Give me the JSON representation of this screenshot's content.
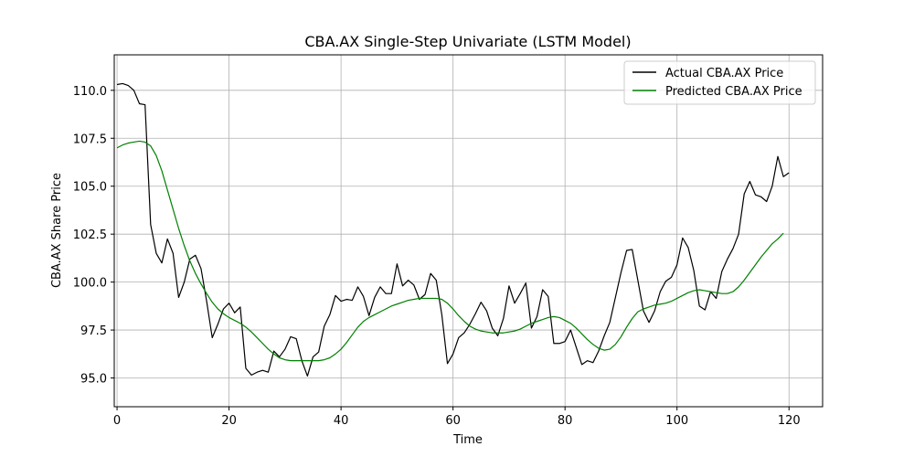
{
  "chart_data": {
    "type": "line",
    "title": "CBA.AX Single-Step Univariate (LSTM Model)",
    "xlabel": "Time",
    "ylabel": "CBA.AX Share Price",
    "xlim": [
      -0.5,
      126
    ],
    "ylim": [
      93.5,
      111.85
    ],
    "xticks": [
      0,
      20,
      40,
      60,
      80,
      100,
      120
    ],
    "yticks": [
      95.0,
      97.5,
      100.0,
      102.5,
      105.0,
      107.5,
      110.0
    ],
    "xtick_labels": [
      "0",
      "20",
      "40",
      "60",
      "80",
      "100",
      "120"
    ],
    "ytick_labels": [
      "95.0",
      "97.5",
      "100.0",
      "102.5",
      "105.0",
      "107.5",
      "110.0"
    ],
    "grid": true,
    "legend_position": "upper right",
    "series": [
      {
        "name": "Actual CBA.AX Price",
        "color": "#000000",
        "values": [
          110.3,
          110.35,
          110.25,
          110.0,
          109.3,
          109.25,
          103.0,
          101.5,
          101.0,
          102.25,
          101.5,
          99.2,
          100.0,
          101.2,
          101.4,
          100.7,
          99.0,
          97.1,
          97.8,
          98.6,
          98.9,
          98.4,
          98.7,
          95.5,
          95.15,
          95.3,
          95.4,
          95.3,
          96.4,
          96.1,
          96.5,
          97.15,
          97.05,
          95.9,
          95.1,
          96.1,
          96.35,
          97.7,
          98.3,
          99.3,
          99.0,
          99.1,
          99.05,
          99.75,
          99.25,
          98.25,
          99.2,
          99.75,
          99.4,
          99.4,
          100.95,
          99.8,
          100.1,
          99.85,
          99.1,
          99.35,
          100.45,
          100.1,
          98.3,
          95.75,
          96.25,
          97.1,
          97.35,
          97.8,
          98.35,
          98.95,
          98.5,
          97.6,
          97.2,
          98.1,
          99.8,
          98.9,
          99.4,
          99.95,
          97.6,
          98.2,
          99.6,
          99.25,
          96.8,
          96.8,
          96.9,
          97.5,
          96.6,
          95.7,
          95.9,
          95.8,
          96.4,
          97.2,
          97.9,
          99.2,
          100.5,
          101.65,
          101.7,
          100.1,
          98.5,
          97.9,
          98.5,
          99.5,
          100.05,
          100.25,
          100.9,
          102.3,
          101.8,
          100.6,
          98.75,
          98.55,
          99.5,
          99.15,
          100.55,
          101.2,
          101.75,
          102.5,
          104.6,
          105.25,
          104.55,
          104.45,
          104.2,
          105.0,
          106.55,
          105.5,
          105.7
        ]
      },
      {
        "name": "Predicted CBA.AX Price",
        "color": "#008000",
        "values": [
          107.0,
          107.15,
          107.25,
          107.3,
          107.35,
          107.3,
          107.1,
          106.6,
          105.8,
          104.8,
          103.8,
          102.8,
          101.9,
          101.1,
          100.45,
          99.9,
          99.4,
          98.95,
          98.6,
          98.35,
          98.15,
          98.0,
          97.85,
          97.65,
          97.4,
          97.1,
          96.8,
          96.5,
          96.25,
          96.05,
          95.95,
          95.9,
          95.9,
          95.9,
          95.9,
          95.9,
          95.9,
          95.95,
          96.05,
          96.25,
          96.5,
          96.85,
          97.25,
          97.65,
          97.95,
          98.15,
          98.3,
          98.45,
          98.6,
          98.75,
          98.85,
          98.95,
          99.05,
          99.1,
          99.15,
          99.15,
          99.15,
          99.15,
          99.1,
          98.9,
          98.6,
          98.25,
          97.95,
          97.7,
          97.55,
          97.45,
          97.4,
          97.35,
          97.35,
          97.35,
          97.4,
          97.45,
          97.55,
          97.7,
          97.85,
          97.95,
          98.05,
          98.15,
          98.2,
          98.15,
          98.0,
          97.85,
          97.6,
          97.3,
          97.0,
          96.75,
          96.55,
          96.45,
          96.5,
          96.75,
          97.15,
          97.65,
          98.1,
          98.45,
          98.6,
          98.7,
          98.8,
          98.85,
          98.9,
          99.0,
          99.15,
          99.3,
          99.45,
          99.55,
          99.6,
          99.55,
          99.5,
          99.45,
          99.4,
          99.4,
          99.5,
          99.75,
          100.1,
          100.5,
          100.9,
          101.3,
          101.65,
          102.0,
          102.25,
          102.55
        ]
      }
    ]
  }
}
